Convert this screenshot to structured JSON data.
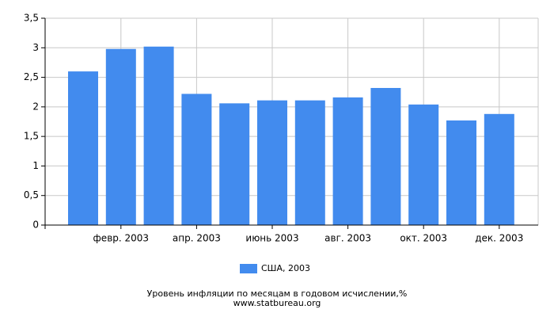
{
  "chart_data": {
    "type": "bar",
    "title": "Уровень инфляции по месяцам в годовом исчислении,%",
    "source": "www.statbureau.org",
    "categories": [
      null,
      "февр. 2003",
      null,
      "апр. 2003",
      null,
      "июнь 2003",
      null,
      "авг. 2003",
      null,
      "окт. 2003",
      null,
      "дек. 2003"
    ],
    "series": [
      {
        "name": "США, 2003",
        "color": "#428bee",
        "values": [
          2.6,
          2.98,
          3.02,
          2.22,
          2.06,
          2.11,
          2.11,
          2.16,
          2.32,
          2.04,
          1.77,
          1.88
        ]
      }
    ],
    "ylim": [
      0,
      3.5
    ],
    "yticks": [
      0,
      {
        "value": 0.5,
        "label": "0,5"
      },
      1,
      {
        "value": 1.5,
        "label": "1,5"
      },
      2,
      {
        "value": 2.5,
        "label": "2,5"
      },
      3,
      {
        "value": 3.5,
        "label": "3,5"
      }
    ],
    "grid": true
  }
}
